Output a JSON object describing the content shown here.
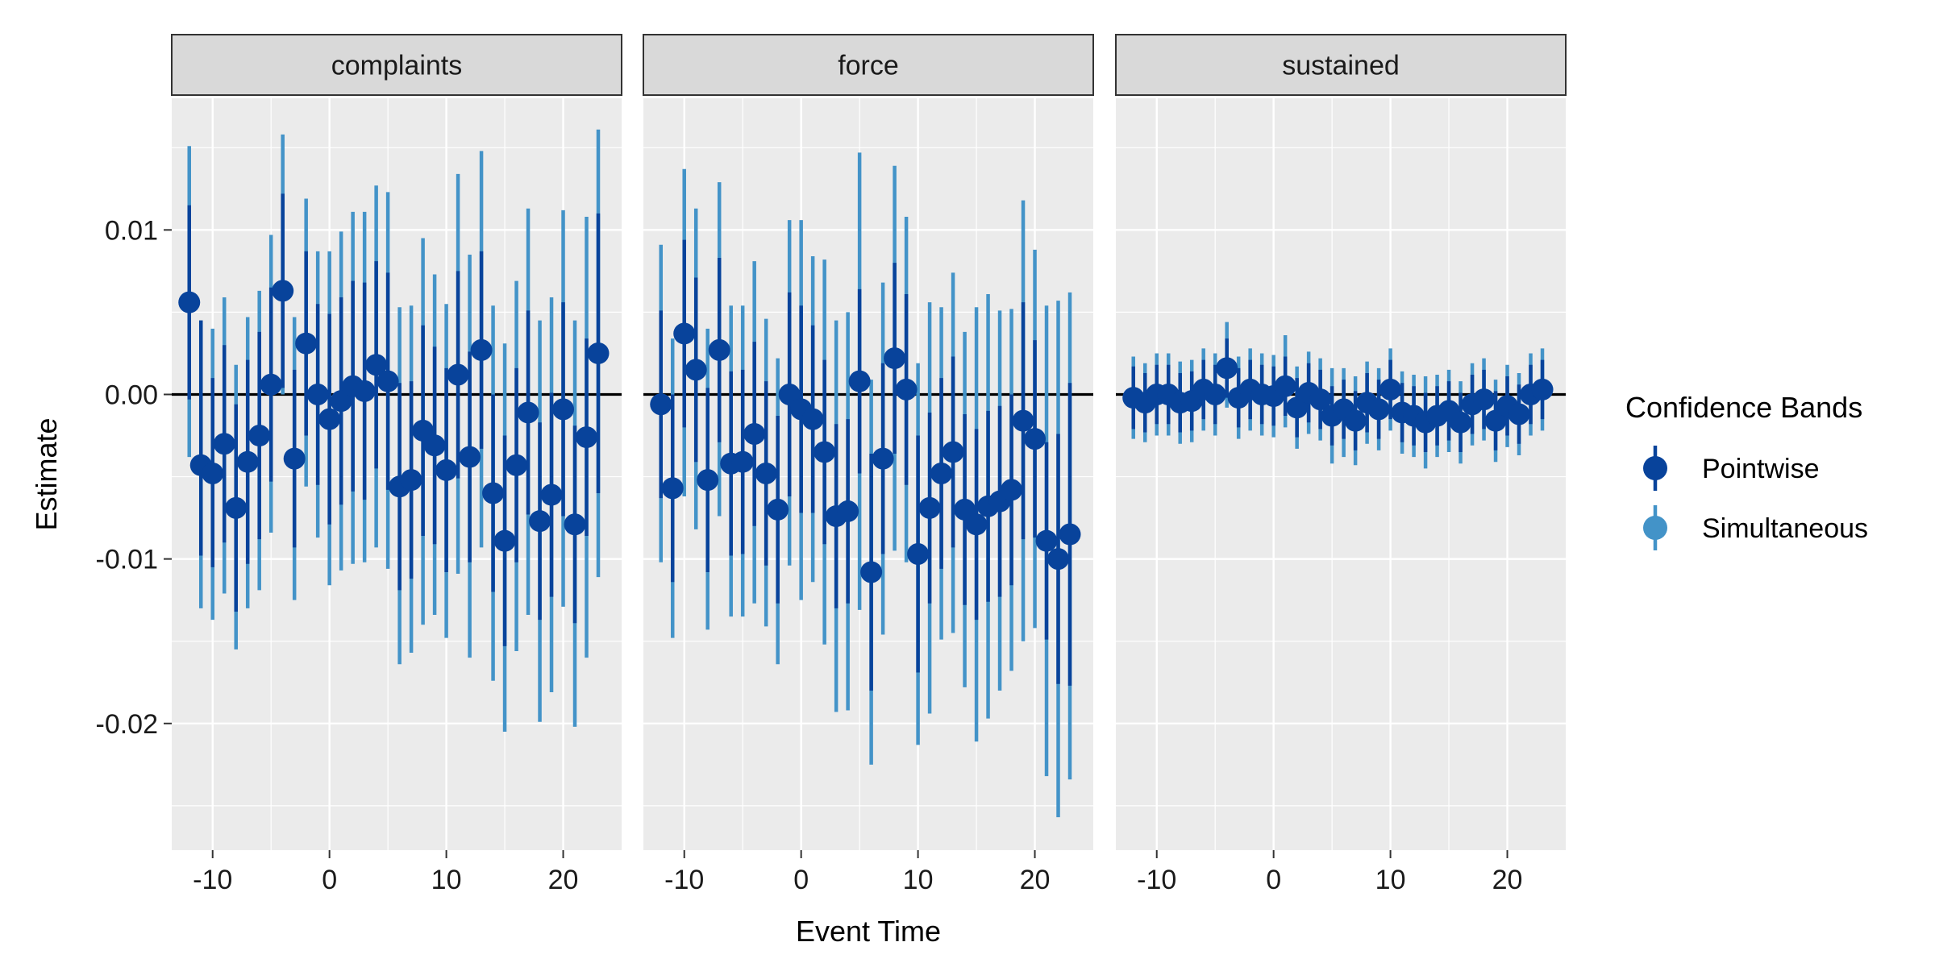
{
  "chart_data": {
    "type": "scatter",
    "xlabel": "Event Time",
    "ylabel": "Estimate",
    "xlim": [
      -13.5,
      25
    ],
    "ylim": [
      -0.0277,
      0.018
    ],
    "x_ticks": [
      -10,
      0,
      10,
      20
    ],
    "x_tick_labels": [
      "-10",
      "0",
      "10",
      "20"
    ],
    "y_ticks": [
      -0.02,
      -0.01,
      0.0,
      0.01
    ],
    "y_tick_labels": [
      "-0.02",
      "-0.01",
      "0.00",
      "0.01"
    ],
    "reference_line": 0,
    "grid": true,
    "legend": {
      "title": "Confidence Bands",
      "position": "right",
      "entries": [
        {
          "label": "Pointwise",
          "color": "#08439b"
        },
        {
          "label": "Simultaneous",
          "color": "#4393c8"
        }
      ]
    },
    "colors": {
      "pointwise": "#08439b",
      "simultaneous": "#4393c8",
      "panel_bg": "#ebebeb",
      "strip_bg": "#d9d9d9"
    },
    "x": [
      -12,
      -11,
      -10,
      -9,
      -8,
      -7,
      -6,
      -5,
      -4,
      -3,
      -2,
      -1,
      0,
      1,
      2,
      3,
      4,
      5,
      6,
      7,
      8,
      9,
      10,
      11,
      12,
      13,
      14,
      15,
      16,
      17,
      18,
      19,
      20,
      21,
      22,
      23
    ],
    "panels": [
      {
        "name": "complaints",
        "estimate": [
          0.0056,
          -0.0043,
          -0.0048,
          -0.003,
          -0.0069,
          -0.0041,
          -0.0025,
          0.0006,
          0.0063,
          -0.0039,
          0.0031,
          0.0,
          -0.0015,
          -0.0004,
          0.0005,
          0.0002,
          0.0018,
          0.0008,
          -0.0056,
          -0.0052,
          -0.0022,
          -0.0031,
          -0.0046,
          0.0012,
          -0.0038,
          0.0027,
          -0.006,
          -0.0089,
          -0.0043,
          -0.0011,
          -0.0077,
          -0.0061,
          -0.0009,
          -0.0079,
          -0.0026,
          0.0025
        ],
        "pointwise": [
          [
            -0.0003,
            0.0115
          ],
          [
            -0.0098,
            0.0045
          ],
          [
            -0.0105,
            0.001
          ],
          [
            -0.009,
            0.003
          ],
          [
            -0.0132,
            -0.0006
          ],
          [
            -0.0103,
            0.0021
          ],
          [
            -0.0088,
            0.0038
          ],
          [
            -0.0053,
            0.0065
          ],
          [
            0.0004,
            0.0122
          ],
          [
            -0.0093,
            0.0015
          ],
          [
            -0.0025,
            0.0087
          ],
          [
            -0.0055,
            0.0055
          ],
          [
            -0.0079,
            0.0049
          ],
          [
            -0.0067,
            0.0059
          ],
          [
            -0.0059,
            0.0069
          ],
          [
            -0.0064,
            0.0068
          ],
          [
            -0.0045,
            0.0081
          ],
          [
            -0.0058,
            0.0074
          ],
          [
            -0.0119,
            0.0007
          ],
          [
            -0.0112,
            0.0008
          ],
          [
            -0.0086,
            0.0042
          ],
          [
            -0.0091,
            0.0029
          ],
          [
            -0.0108,
            0.0016
          ],
          [
            -0.0051,
            0.0075
          ],
          [
            -0.0102,
            0.0026
          ],
          [
            -0.0033,
            0.0087
          ],
          [
            -0.012,
            0.0
          ],
          [
            -0.0153,
            -0.0025
          ],
          [
            -0.0102,
            0.0016
          ],
          [
            -0.0073,
            0.0051
          ],
          [
            -0.0137,
            -0.0017
          ],
          [
            -0.0123,
            0.0001
          ],
          [
            -0.0074,
            0.0056
          ],
          [
            -0.0139,
            -0.0019
          ],
          [
            -0.0086,
            0.0034
          ],
          [
            -0.006,
            0.011
          ]
        ],
        "simultaneous": [
          [
            -0.0038,
            0.0151
          ],
          [
            -0.013,
            0.0045
          ],
          [
            -0.0137,
            0.004
          ],
          [
            -0.0121,
            0.0059
          ],
          [
            -0.0155,
            0.0018
          ],
          [
            -0.013,
            0.0047
          ],
          [
            -0.0119,
            0.0063
          ],
          [
            -0.0084,
            0.0097
          ],
          [
            0.0,
            0.0158
          ],
          [
            -0.0125,
            0.0047
          ],
          [
            -0.0056,
            0.0119
          ],
          [
            -0.0087,
            0.0087
          ],
          [
            -0.0116,
            0.0087
          ],
          [
            -0.0107,
            0.0099
          ],
          [
            -0.0103,
            0.0111
          ],
          [
            -0.0102,
            0.0111
          ],
          [
            -0.0093,
            0.0127
          ],
          [
            -0.0106,
            0.0123
          ],
          [
            -0.0164,
            0.0053
          ],
          [
            -0.0157,
            0.0054
          ],
          [
            -0.014,
            0.0095
          ],
          [
            -0.0134,
            0.0073
          ],
          [
            -0.0148,
            0.0055
          ],
          [
            -0.0109,
            0.0134
          ],
          [
            -0.016,
            0.0085
          ],
          [
            -0.0093,
            0.0148
          ],
          [
            -0.0174,
            0.0054
          ],
          [
            -0.0205,
            0.0031
          ],
          [
            -0.0156,
            0.0069
          ],
          [
            -0.0134,
            0.0113
          ],
          [
            -0.0199,
            0.0045
          ],
          [
            -0.0181,
            0.0059
          ],
          [
            -0.0129,
            0.0112
          ],
          [
            -0.0202,
            0.0045
          ],
          [
            -0.016,
            0.0108
          ],
          [
            -0.0111,
            0.0161
          ]
        ]
      },
      {
        "name": "force",
        "estimate": [
          -0.0006,
          -0.0057,
          0.0037,
          0.0015,
          -0.0052,
          0.0027,
          -0.0042,
          -0.0041,
          -0.0024,
          -0.0048,
          -0.007,
          0.0,
          -0.0009,
          -0.0015,
          -0.0035,
          -0.0074,
          -0.0071,
          0.0008,
          -0.0108,
          -0.0039,
          0.0022,
          0.0003,
          -0.0097,
          -0.0069,
          -0.0048,
          -0.0035,
          -0.007,
          -0.0079,
          -0.0068,
          -0.0065,
          -0.0058,
          -0.0016,
          -0.0027,
          -0.0089,
          -0.01,
          -0.0085
        ],
        "pointwise": [
          [
            -0.0063,
            0.0051
          ],
          [
            -0.0114,
            0.0
          ],
          [
            -0.002,
            0.0094
          ],
          [
            -0.0041,
            0.0071
          ],
          [
            -0.0108,
            0.0004
          ],
          [
            -0.0029,
            0.0083
          ],
          [
            -0.0098,
            0.0014
          ],
          [
            -0.0097,
            0.0015
          ],
          [
            -0.008,
            0.0032
          ],
          [
            -0.0104,
            0.0008
          ],
          [
            -0.0127,
            -0.0013
          ],
          [
            -0.0062,
            0.0062
          ],
          [
            -0.0072,
            0.0054
          ],
          [
            -0.0072,
            0.0042
          ],
          [
            -0.0091,
            0.0021
          ],
          [
            -0.013,
            -0.0018
          ],
          [
            -0.0127,
            -0.0015
          ],
          [
            -0.0048,
            0.0064
          ],
          [
            -0.018,
            -0.0036
          ],
          [
            -0.0097,
            0.0019
          ],
          [
            -0.0036,
            0.008
          ],
          [
            -0.0055,
            0.0061
          ],
          [
            -0.0169,
            -0.0025
          ],
          [
            -0.0127,
            -0.0011
          ],
          [
            -0.0106,
            0.001
          ],
          [
            -0.0093,
            0.0023
          ],
          [
            -0.0128,
            -0.0012
          ],
          [
            -0.0137,
            -0.0021
          ],
          [
            -0.0126,
            -0.001
          ],
          [
            -0.0123,
            -0.0007
          ],
          [
            -0.0116,
            0.0
          ],
          [
            -0.0088,
            0.0056
          ],
          [
            -0.0087,
            0.0033
          ],
          [
            -0.0149,
            -0.0029
          ],
          [
            -0.0176,
            -0.0024
          ],
          [
            -0.0177,
            0.0007
          ]
        ],
        "simultaneous": [
          [
            -0.0102,
            0.0091
          ],
          [
            -0.0148,
            0.0034
          ],
          [
            -0.0062,
            0.0137
          ],
          [
            -0.0082,
            0.0113
          ],
          [
            -0.0143,
            0.004
          ],
          [
            -0.0074,
            0.0129
          ],
          [
            -0.0135,
            0.0054
          ],
          [
            -0.0135,
            0.0054
          ],
          [
            -0.0127,
            0.0081
          ],
          [
            -0.0141,
            0.0046
          ],
          [
            -0.0164,
            0.0022
          ],
          [
            -0.0104,
            0.0106
          ],
          [
            -0.0125,
            0.0106
          ],
          [
            -0.0114,
            0.0084
          ],
          [
            -0.0152,
            0.0082
          ],
          [
            -0.0193,
            0.0045
          ],
          [
            -0.0192,
            0.005
          ],
          [
            -0.0131,
            0.0147
          ],
          [
            -0.0225,
            0.0009
          ],
          [
            -0.0146,
            0.0068
          ],
          [
            -0.0095,
            0.0139
          ],
          [
            -0.0102,
            0.0108
          ],
          [
            -0.0213,
            0.0019
          ],
          [
            -0.0194,
            0.0056
          ],
          [
            -0.0149,
            0.0053
          ],
          [
            -0.0145,
            0.0074
          ],
          [
            -0.0178,
            0.0038
          ],
          [
            -0.0211,
            0.0053
          ],
          [
            -0.0197,
            0.0061
          ],
          [
            -0.018,
            0.0051
          ],
          [
            -0.0168,
            0.0052
          ],
          [
            -0.015,
            0.0118
          ],
          [
            -0.0142,
            0.0088
          ],
          [
            -0.0232,
            0.0054
          ],
          [
            -0.0257,
            0.0057
          ],
          [
            -0.0234,
            0.0062
          ]
        ]
      },
      {
        "name": "sustained",
        "estimate": [
          -0.0002,
          -0.0005,
          0.0,
          0.0,
          -0.0005,
          -0.0004,
          0.0003,
          0.0,
          0.0016,
          -0.0002,
          0.0003,
          0.0,
          -0.0001,
          0.0005,
          -0.0008,
          0.0001,
          -0.0003,
          -0.0013,
          -0.0009,
          -0.0016,
          -0.0005,
          -0.0009,
          0.0003,
          -0.0011,
          -0.0013,
          -0.0017,
          -0.0013,
          -0.001,
          -0.0017,
          -0.0006,
          -0.0003,
          -0.0016,
          -0.0007,
          -0.0012,
          0.0,
          0.0003
        ],
        "pointwise": [
          [
            -0.0021,
            0.0017
          ],
          [
            -0.0023,
            0.0013
          ],
          [
            -0.0018,
            0.0018
          ],
          [
            -0.0018,
            0.0018
          ],
          [
            -0.0023,
            0.0013
          ],
          [
            -0.0022,
            0.0014
          ],
          [
            -0.0015,
            0.0021
          ],
          [
            -0.0018,
            0.0018
          ],
          [
            -0.0002,
            0.0034
          ],
          [
            -0.002,
            0.0016
          ],
          [
            -0.0015,
            0.0021
          ],
          [
            -0.0018,
            0.0018
          ],
          [
            -0.0019,
            0.0017
          ],
          [
            -0.0013,
            0.0023
          ],
          [
            -0.0026,
            0.001
          ],
          [
            -0.0017,
            0.0019
          ],
          [
            -0.0021,
            0.0015
          ],
          [
            -0.0031,
            0.0005
          ],
          [
            -0.0027,
            0.0009
          ],
          [
            -0.0034,
            0.0002
          ],
          [
            -0.0023,
            0.0013
          ],
          [
            -0.0027,
            0.0009
          ],
          [
            -0.0015,
            0.0021
          ],
          [
            -0.0029,
            0.0007
          ],
          [
            -0.0031,
            0.0005
          ],
          [
            -0.0035,
            0.0001
          ],
          [
            -0.0031,
            0.0005
          ],
          [
            -0.0028,
            0.0008
          ],
          [
            -0.0035,
            0.0001
          ],
          [
            -0.0024,
            0.0012
          ],
          [
            -0.0021,
            0.0015
          ],
          [
            -0.0034,
            0.0002
          ],
          [
            -0.0025,
            0.0011
          ],
          [
            -0.003,
            0.0006
          ],
          [
            -0.0018,
            0.0018
          ],
          [
            -0.0015,
            0.0021
          ]
        ],
        "simultaneous": [
          [
            -0.0027,
            0.0023
          ],
          [
            -0.0029,
            0.0019
          ],
          [
            -0.0025,
            0.0025
          ],
          [
            -0.0025,
            0.0025
          ],
          [
            -0.003,
            0.002
          ],
          [
            -0.0029,
            0.0021
          ],
          [
            -0.0022,
            0.0028
          ],
          [
            -0.0025,
            0.0025
          ],
          [
            -0.0008,
            0.0044
          ],
          [
            -0.0027,
            0.0023
          ],
          [
            -0.0022,
            0.0028
          ],
          [
            -0.0025,
            0.0025
          ],
          [
            -0.0026,
            0.0024
          ],
          [
            -0.002,
            0.0036
          ],
          [
            -0.0033,
            0.0017
          ],
          [
            -0.0024,
            0.0026
          ],
          [
            -0.0028,
            0.0022
          ],
          [
            -0.0042,
            0.0016
          ],
          [
            -0.0038,
            0.0016
          ],
          [
            -0.0043,
            0.0011
          ],
          [
            -0.003,
            0.002
          ],
          [
            -0.0034,
            0.0016
          ],
          [
            -0.0022,
            0.0028
          ],
          [
            -0.0036,
            0.0014
          ],
          [
            -0.0038,
            0.0012
          ],
          [
            -0.0045,
            0.0011
          ],
          [
            -0.0038,
            0.0012
          ],
          [
            -0.0035,
            0.0015
          ],
          [
            -0.0042,
            0.0008
          ],
          [
            -0.0031,
            0.0019
          ],
          [
            -0.0028,
            0.0022
          ],
          [
            -0.0041,
            0.0009
          ],
          [
            -0.0032,
            0.0018
          ],
          [
            -0.0037,
            0.0013
          ],
          [
            -0.0025,
            0.0025
          ],
          [
            -0.0022,
            0.0028
          ]
        ]
      }
    ]
  }
}
